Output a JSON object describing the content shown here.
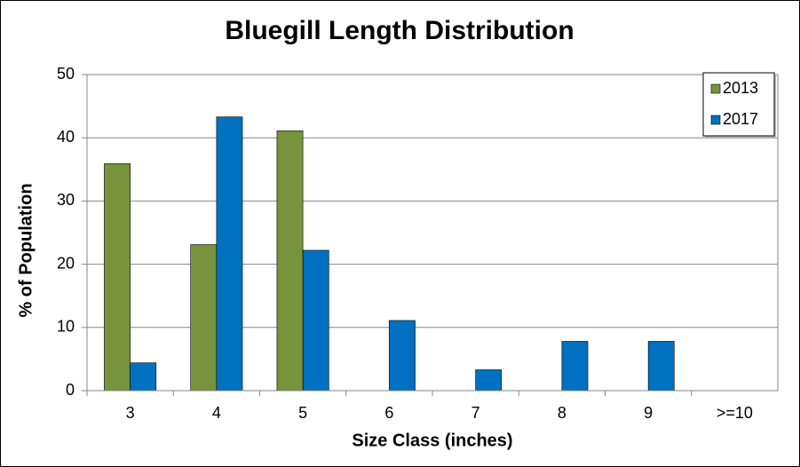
{
  "chart_data": {
    "type": "bar",
    "title": "Bluegill Length Distribution",
    "x_label": "Size Class (inches)",
    "y_label": "% of Population",
    "categories": [
      "3",
      "4",
      "5",
      "6",
      "7",
      "8",
      "9",
      ">=10"
    ],
    "series": [
      {
        "name": "2013",
        "color": "#77933c",
        "values": [
          35.9,
          23.1,
          41.1,
          0,
          0,
          0,
          0,
          0
        ]
      },
      {
        "name": "2017",
        "color": "#0070c0",
        "values": [
          4.4,
          43.3,
          22.2,
          11.1,
          3.3,
          7.8,
          7.8,
          0
        ]
      }
    ],
    "ylim": [
      0,
      50
    ],
    "yticks": [
      0,
      10,
      20,
      30,
      40,
      50
    ],
    "grid": true,
    "legend": "top-right"
  }
}
